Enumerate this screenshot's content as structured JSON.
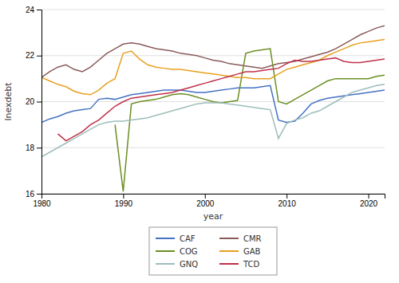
{
  "chart_data": {
    "type": "line",
    "xlabel": "year",
    "ylabel": "lnexdebt",
    "x": [
      1980,
      1981,
      1982,
      1983,
      1984,
      1985,
      1986,
      1987,
      1988,
      1989,
      1990,
      1991,
      1992,
      1993,
      1994,
      1995,
      1996,
      1997,
      1998,
      1999,
      2000,
      2001,
      2002,
      2003,
      2004,
      2005,
      2006,
      2007,
      2008,
      2009,
      2010,
      2011,
      2012,
      2013,
      2014,
      2015,
      2016,
      2017,
      2018,
      2019,
      2020,
      2021,
      2022
    ],
    "xlim": [
      1980,
      2022
    ],
    "xticks": [
      1980,
      1990,
      2000,
      2010,
      2020
    ],
    "ylim": [
      16,
      24
    ],
    "yticks": [
      16,
      18,
      20,
      22,
      24
    ],
    "grid": true,
    "legend": "bottom",
    "series": [
      {
        "name": "CAF",
        "color": "#4472C4",
        "values": [
          19.1,
          19.25,
          19.35,
          19.5,
          19.6,
          19.65,
          19.7,
          20.1,
          20.15,
          20.1,
          20.2,
          20.3,
          20.35,
          20.4,
          20.45,
          20.5,
          20.5,
          20.5,
          20.45,
          20.4,
          20.4,
          20.45,
          20.5,
          20.55,
          20.6,
          20.6,
          20.6,
          20.65,
          20.7,
          19.2,
          19.1,
          19.15,
          19.5,
          19.9,
          20.05,
          20.15,
          20.2,
          20.25,
          20.3,
          20.35,
          20.4,
          20.45,
          20.5
        ]
      },
      {
        "name": "CMR",
        "color": "#8B5A5A",
        "values": [
          21.05,
          21.3,
          21.5,
          21.6,
          21.4,
          21.3,
          21.5,
          21.8,
          22.1,
          22.3,
          22.5,
          22.55,
          22.5,
          22.4,
          22.3,
          22.25,
          22.2,
          22.1,
          22.05,
          22.0,
          21.9,
          21.8,
          21.75,
          21.65,
          21.6,
          21.55,
          21.5,
          21.45,
          21.55,
          21.65,
          21.7,
          21.75,
          21.85,
          21.95,
          22.05,
          22.15,
          22.3,
          22.5,
          22.7,
          22.9,
          23.05,
          23.2,
          23.3
        ]
      },
      {
        "name": "COG",
        "color": "#6B8E23",
        "values": [
          null,
          null,
          null,
          null,
          null,
          null,
          null,
          null,
          null,
          19.0,
          16.1,
          19.9,
          20.0,
          20.05,
          20.1,
          20.2,
          20.3,
          20.35,
          20.3,
          20.2,
          20.1,
          20.0,
          19.95,
          20.0,
          20.05,
          22.1,
          22.2,
          22.25,
          22.3,
          20.0,
          19.9,
          20.1,
          20.3,
          20.5,
          20.7,
          20.9,
          21.0,
          21.0,
          21.0,
          21.0,
          21.0,
          21.1,
          21.15
        ]
      },
      {
        "name": "GAB",
        "color": "#E8A020",
        "values": [
          21.05,
          20.9,
          20.75,
          20.65,
          20.45,
          20.35,
          20.3,
          20.5,
          20.8,
          21.0,
          22.1,
          22.2,
          21.85,
          21.6,
          21.5,
          21.45,
          21.4,
          21.4,
          21.35,
          21.3,
          21.25,
          21.2,
          21.15,
          21.1,
          21.05,
          21.05,
          21.0,
          21.0,
          21.0,
          21.2,
          21.4,
          21.5,
          21.6,
          21.7,
          21.8,
          22.0,
          22.15,
          22.3,
          22.45,
          22.55,
          22.6,
          22.65,
          22.7
        ]
      },
      {
        "name": "GNQ",
        "color": "#9DBDBB",
        "values": [
          17.6,
          17.8,
          18.0,
          18.2,
          18.4,
          18.6,
          18.8,
          19.0,
          19.1,
          19.15,
          19.15,
          19.2,
          19.25,
          19.3,
          19.4,
          19.5,
          19.6,
          19.7,
          19.8,
          19.9,
          19.95,
          19.95,
          19.95,
          19.9,
          19.85,
          19.8,
          19.75,
          19.7,
          19.65,
          18.4,
          19.05,
          19.2,
          19.3,
          19.5,
          19.6,
          19.8,
          20.0,
          20.2,
          20.4,
          20.5,
          20.6,
          20.7,
          20.75
        ]
      },
      {
        "name": "TCD",
        "color": "#C0304A",
        "values": [
          null,
          null,
          18.6,
          18.3,
          18.5,
          18.7,
          19.0,
          19.2,
          19.5,
          19.8,
          20.0,
          20.15,
          20.2,
          20.25,
          20.3,
          20.35,
          20.4,
          20.5,
          20.6,
          20.7,
          20.8,
          20.9,
          21.0,
          21.1,
          21.2,
          21.3,
          21.3,
          21.35,
          21.4,
          21.45,
          21.65,
          21.8,
          21.75,
          21.75,
          21.8,
          21.85,
          21.9,
          21.75,
          21.7,
          21.7,
          21.75,
          21.8,
          21.85
        ]
      }
    ]
  }
}
